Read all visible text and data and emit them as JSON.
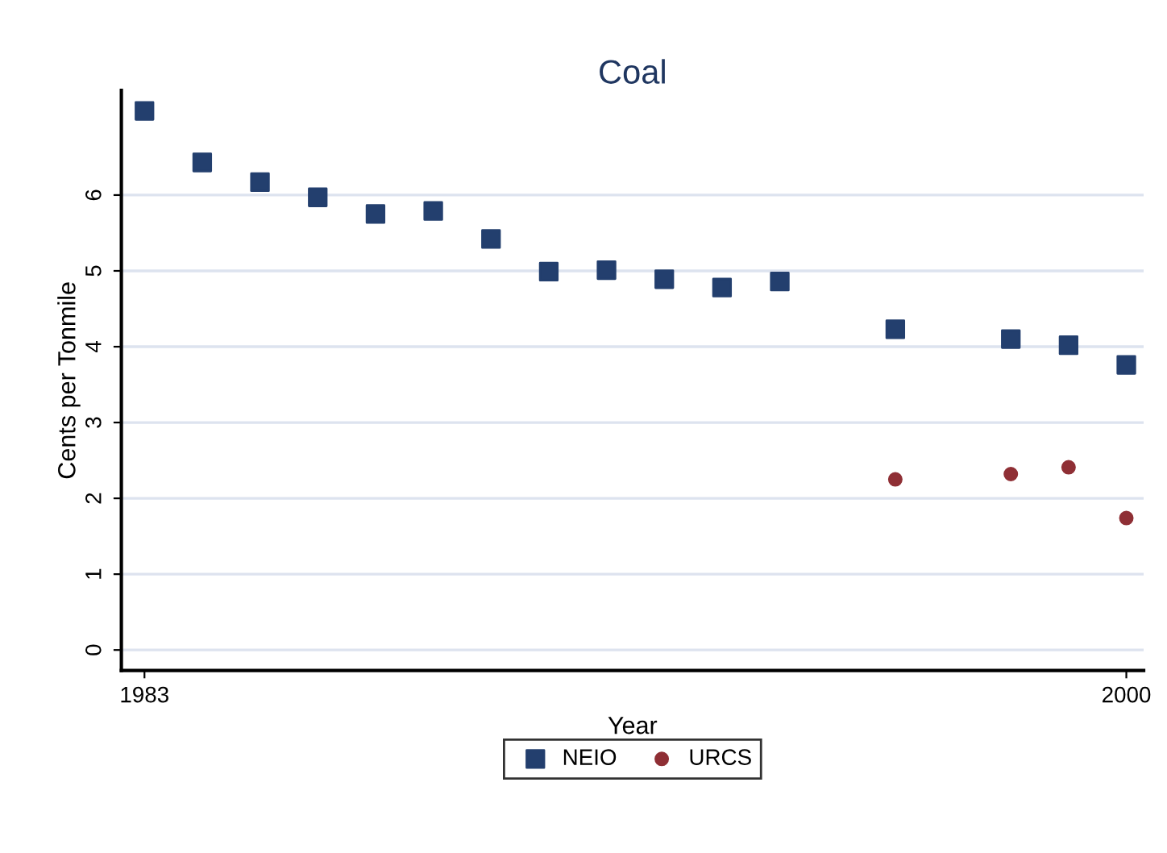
{
  "chart_data": {
    "type": "scatter",
    "title": "Coal",
    "xlabel": "Year",
    "ylabel": "Cents per Tonmile",
    "series": [
      {
        "name": "NEIO",
        "color": "#233f6e",
        "marker": "square",
        "x": [
          1983,
          1984,
          1985,
          1986,
          1987,
          1988,
          1989,
          1990,
          1991,
          1992,
          1993,
          1994,
          1996,
          1998,
          1999,
          2000
        ],
        "values": [
          7.11,
          6.43,
          6.17,
          5.97,
          5.75,
          5.79,
          5.42,
          4.99,
          5.01,
          4.89,
          4.78,
          4.86,
          4.23,
          4.1,
          4.02,
          3.76
        ]
      },
      {
        "name": "URCS",
        "color": "#8f2f35",
        "marker": "circle",
        "x": [
          1996,
          1998,
          1999,
          2000
        ],
        "values": [
          2.25,
          2.32,
          2.41,
          1.74
        ]
      }
    ],
    "xlim": [
      1982.6,
      2000.3
    ],
    "xticks": [
      1983,
      2000
    ],
    "ylim": [
      -0.27,
      7.38
    ],
    "yticks": [
      0,
      1,
      2,
      3,
      4,
      5,
      6
    ],
    "grid": "y",
    "legend": "bottom"
  }
}
